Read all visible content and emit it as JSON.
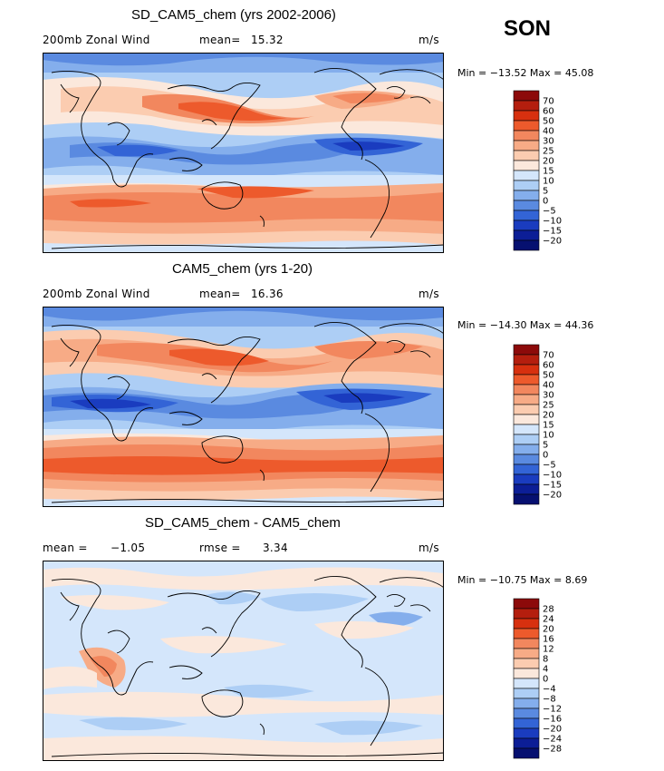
{
  "season": "SON",
  "panels": [
    {
      "title": "SD_CAM5_chem (yrs 2002-2006)",
      "left_label": "200mb Zonal Wind",
      "stat1_label": "mean=",
      "stat1_value": "15.32",
      "stat2_label": "",
      "stat2_value": "",
      "units": "m/s",
      "minmax": "Min = −13.52 Max =  45.08",
      "colorbar_levels": [
        "70",
        "60",
        "50",
        "40",
        "30",
        "25",
        "20",
        "15",
        "10",
        "5",
        "0",
        "−5",
        "−10",
        "−15",
        "−20"
      ]
    },
    {
      "title": "CAM5_chem (yrs 1-20)",
      "left_label": "200mb Zonal Wind",
      "stat1_label": "mean=",
      "stat1_value": "16.36",
      "stat2_label": "",
      "stat2_value": "",
      "units": "m/s",
      "minmax": "Min = −14.30 Max =  44.36",
      "colorbar_levels": [
        "70",
        "60",
        "50",
        "40",
        "30",
        "25",
        "20",
        "15",
        "10",
        "5",
        "0",
        "−5",
        "−10",
        "−15",
        "−20"
      ]
    },
    {
      "title": "SD_CAM5_chem - CAM5_chem",
      "left_label": "mean =",
      "stat1_label": "",
      "stat1_value": "−1.05",
      "stat2_label": "rmse =",
      "stat2_value": "3.34",
      "units": "m/s",
      "minmax": "Min = −10.75 Max =    8.69",
      "colorbar_levels": [
        "28",
        "24",
        "20",
        "16",
        "12",
        "8",
        "4",
        "0",
        "−4",
        "−8",
        "−12",
        "−16",
        "−20",
        "−24",
        "−28"
      ]
    }
  ],
  "colors": {
    "scale": [
      "#8c0a0a",
      "#b41e0e",
      "#d7300f",
      "#ed5a2c",
      "#f2875e",
      "#f7ab86",
      "#fbccb0",
      "#fbe8dc",
      "#d4e6fb",
      "#adcef5",
      "#84aeec",
      "#5a8ae0",
      "#3364d6",
      "#1a3cbf",
      "#0c1e96",
      "#061070"
    ],
    "coast": "#000000"
  }
}
